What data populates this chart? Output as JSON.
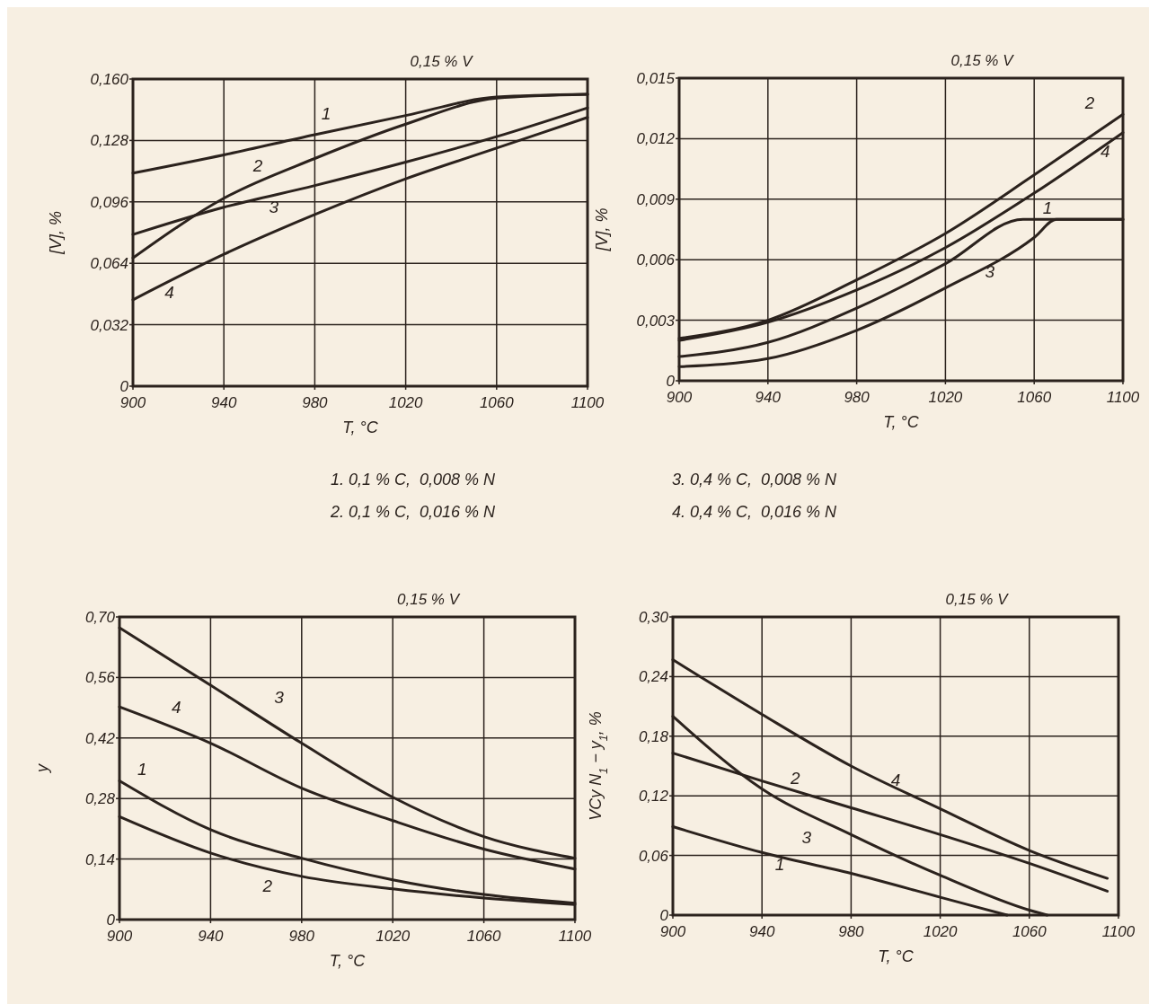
{
  "chart_data": [
    {
      "type": "line",
      "title": "0,15 % V",
      "xlabel": "T, °C",
      "ylabel": "[V], %",
      "x": [
        900,
        940,
        980,
        1020,
        1060,
        1100
      ],
      "xlim": [
        900,
        1100
      ],
      "xticks": [
        900,
        940,
        980,
        1020,
        1060,
        1100
      ],
      "ylim": [
        0,
        0.16
      ],
      "yticks": [
        {
          "value": 0,
          "label": "0"
        },
        {
          "value": 0.032,
          "label": "0,032"
        },
        {
          "value": 0.064,
          "label": "0,064"
        },
        {
          "value": 0.096,
          "label": "0,096"
        },
        {
          "value": 0.128,
          "label": "0,128"
        },
        {
          "value": 0.16,
          "label": "0,160"
        }
      ],
      "grid": true,
      "legend": false,
      "marker": "none",
      "line_style": "solid",
      "series": [
        {
          "name": "1",
          "color": "#2b221d",
          "values": [
            0.111,
            0.1205,
            0.131,
            0.141,
            0.1506,
            0.152
          ]
        },
        {
          "name": "2",
          "color": "#2b221d",
          "values": [
            0.0668,
            0.0979,
            0.1186,
            0.1365,
            0.15,
            0.152
          ]
        },
        {
          "name": "3",
          "color": "#2b221d",
          "values": [
            0.079,
            0.0932,
            0.1045,
            0.1167,
            0.13,
            0.145
          ]
        },
        {
          "name": "4",
          "color": "#2b221d",
          "values": [
            0.045,
            0.0687,
            0.0894,
            0.108,
            0.124,
            0.14
          ]
        }
      ]
    },
    {
      "type": "line",
      "title": "0,15 % V",
      "xlabel": "T, °C",
      "ylabel": "[V], %",
      "x": [
        900,
        940,
        980,
        1020,
        1060,
        1100
      ],
      "xlim": [
        900,
        1100
      ],
      "xticks": [
        900,
        940,
        980,
        1020,
        1060,
        1100
      ],
      "ylim": [
        0,
        0.015
      ],
      "yticks": [
        {
          "value": 0,
          "label": "0"
        },
        {
          "value": 0.003,
          "label": "0,003"
        },
        {
          "value": 0.006,
          "label": "0,006"
        },
        {
          "value": 0.009,
          "label": "0,009"
        },
        {
          "value": 0.012,
          "label": "0,012"
        },
        {
          "value": 0.015,
          "label": "0,015"
        }
      ],
      "grid": true,
      "legend": false,
      "marker": "none",
      "line_style": "solid",
      "series": [
        {
          "name": "1",
          "color": "#2b221d",
          "x": [
            900,
            940,
            980,
            1020,
            1055,
            1100
          ],
          "values": [
            0.0012,
            0.0019,
            0.0036,
            0.0058,
            0.008,
            0.008
          ]
        },
        {
          "name": "2",
          "color": "#2b221d",
          "values": [
            0.0021,
            0.003,
            0.005,
            0.0073,
            0.0102,
            0.0132
          ]
        },
        {
          "name": "3",
          "color": "#2b221d",
          "x": [
            900,
            940,
            980,
            1020,
            1060,
            1070,
            1100
          ],
          "values": [
            0.0007,
            0.0011,
            0.0025,
            0.0046,
            0.0071,
            0.008,
            0.008
          ]
        },
        {
          "name": "4",
          "color": "#2b221d",
          "values": [
            0.002,
            0.0029,
            0.0045,
            0.0066,
            0.0093,
            0.0123
          ]
        }
      ]
    },
    {
      "type": "other",
      "annotations": [
        "1. 0,1 % C,  0,008 % N",
        "2. 0,1 % C,  0,016 % N",
        "3. 0,4 % C,  0,008 % N",
        "4. 0,4 % C,  0,016 % N"
      ]
    },
    {
      "type": "line",
      "title": "0,15 % V",
      "xlabel": "T, °C",
      "ylabel": "y",
      "x": [
        900,
        940,
        980,
        1020,
        1060,
        1100
      ],
      "xlim": [
        900,
        1100
      ],
      "xticks": [
        900,
        940,
        980,
        1020,
        1060,
        1100
      ],
      "ylim": [
        0,
        0.7
      ],
      "yticks": [
        {
          "value": 0,
          "label": "0"
        },
        {
          "value": 0.14,
          "label": "0,14"
        },
        {
          "value": 0.28,
          "label": "0,28"
        },
        {
          "value": 0.42,
          "label": "0,42"
        },
        {
          "value": 0.56,
          "label": "0,56"
        },
        {
          "value": 0.7,
          "label": "0,70"
        }
      ],
      "grid": true,
      "legend": false,
      "marker": "none",
      "line_style": "solid",
      "series": [
        {
          "name": "1",
          "color": "#2b221d",
          "values": [
            0.321,
            0.208,
            0.142,
            0.092,
            0.058,
            0.038
          ]
        },
        {
          "name": "2",
          "color": "#2b221d",
          "values": [
            0.238,
            0.154,
            0.1,
            0.071,
            0.05,
            0.035
          ]
        },
        {
          "name": "3",
          "color": "#2b221d",
          "values": [
            0.675,
            0.542,
            0.408,
            0.283,
            0.192,
            0.142
          ]
        },
        {
          "name": "4",
          "color": "#2b221d",
          "values": [
            0.492,
            0.408,
            0.304,
            0.229,
            0.163,
            0.117
          ]
        }
      ]
    },
    {
      "type": "line",
      "title": "0,15 % V",
      "xlabel": "T, °C",
      "ylabel": "VCy N$_{1}$ − y$_{1}$, %",
      "xlim": [
        900,
        1100
      ],
      "xticks": [
        900,
        940,
        980,
        1020,
        1060,
        1100
      ],
      "ylim": [
        0,
        0.3
      ],
      "yticks": [
        {
          "value": 0,
          "label": "0"
        },
        {
          "value": 0.06,
          "label": "0,06"
        },
        {
          "value": 0.12,
          "label": "0,12"
        },
        {
          "value": 0.18,
          "label": "0,18"
        },
        {
          "value": 0.24,
          "label": "0,24"
        },
        {
          "value": 0.3,
          "label": "0,30"
        }
      ],
      "grid": true,
      "legend": false,
      "marker": "none",
      "line_style": "solid",
      "series": [
        {
          "name": "1",
          "color": "#2b221d",
          "x": [
            900,
            940,
            980,
            1020,
            1050
          ],
          "values": [
            0.089,
            0.063,
            0.042,
            0.018,
            0
          ]
        },
        {
          "name": "2",
          "color": "#2b221d",
          "x": [
            900,
            940,
            980,
            1020,
            1060,
            1095
          ],
          "values": [
            0.163,
            0.135,
            0.108,
            0.081,
            0.052,
            0.024
          ]
        },
        {
          "name": "3",
          "color": "#2b221d",
          "x": [
            900,
            940,
            980,
            1020,
            1060,
            1068
          ],
          "values": [
            0.2,
            0.127,
            0.081,
            0.04,
            0.005,
            0
          ]
        },
        {
          "name": "4",
          "color": "#2b221d",
          "x": [
            900,
            940,
            980,
            1020,
            1060,
            1095
          ],
          "values": [
            0.257,
            0.202,
            0.15,
            0.107,
            0.065,
            0.037
          ]
        }
      ]
    }
  ]
}
